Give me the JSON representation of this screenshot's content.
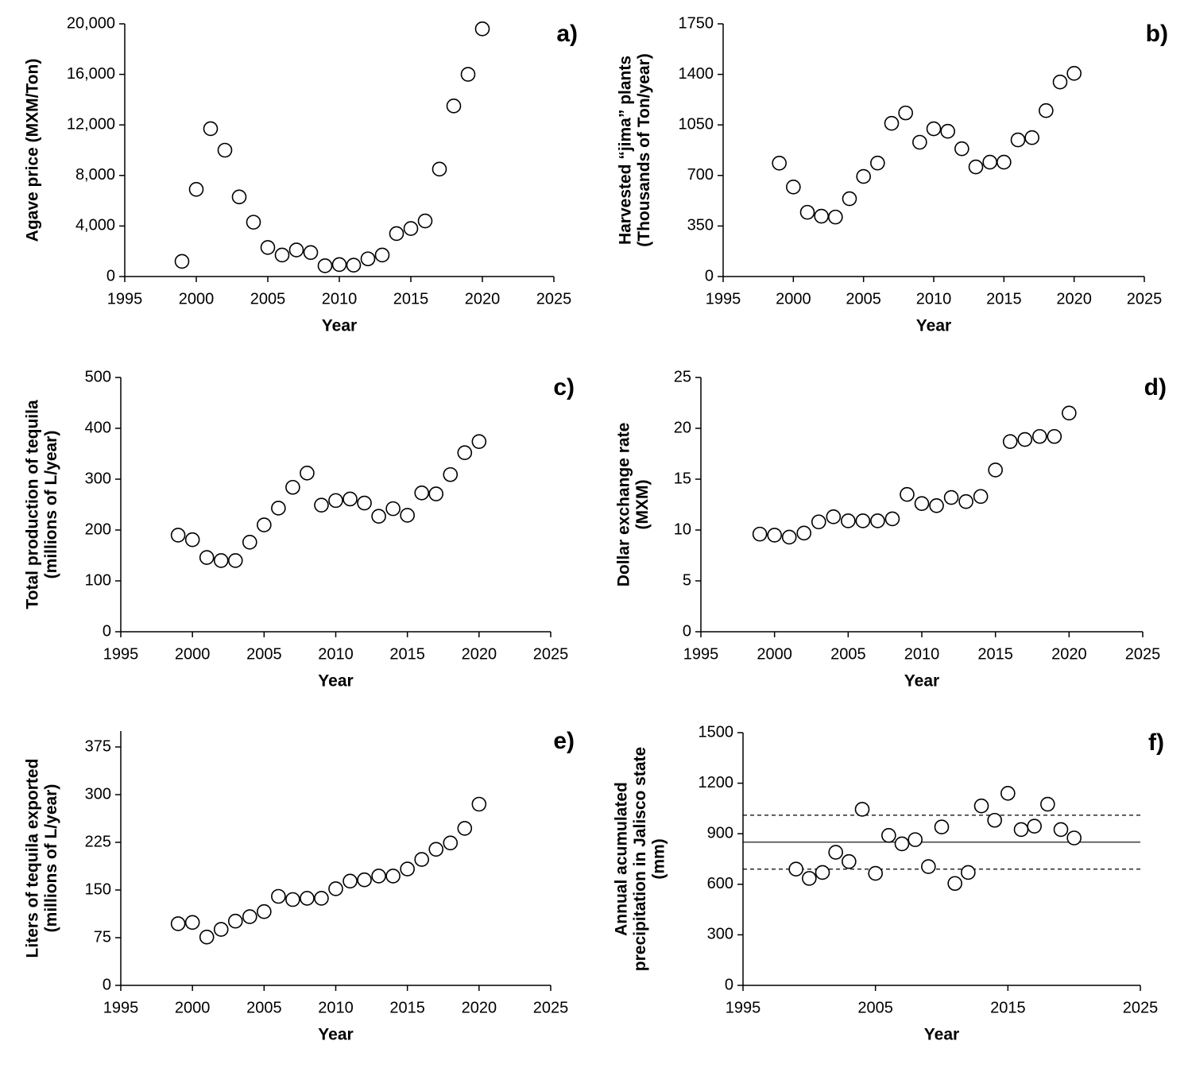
{
  "chart_data": [
    {
      "type": "scatter",
      "panel_label": "a)",
      "x_label": "Year",
      "y_label": [
        "Agave price (MXM/Ton)"
      ],
      "x": [
        1999,
        2000,
        2001,
        2002,
        2003,
        2004,
        2005,
        2006,
        2007,
        2008,
        2009,
        2010,
        2011,
        2012,
        2013,
        2014,
        2015,
        2016,
        2017,
        2018,
        2019,
        2020
      ],
      "values": [
        1200,
        6900,
        11700,
        10000,
        6300,
        4300,
        2300,
        1700,
        2100,
        1900,
        850,
        950,
        900,
        1400,
        1700,
        3400,
        3800,
        4400,
        8500,
        13500,
        16000,
        19600
      ],
      "xlim": [
        1995,
        2025
      ],
      "xticks": [
        1995,
        2000,
        2005,
        2010,
        2015,
        2020,
        2025
      ],
      "ylim": [
        0,
        20000
      ],
      "yticks": [
        0,
        {
          "value": 4000,
          "label": "4,000"
        },
        {
          "value": 8000,
          "label": "8,000"
        },
        {
          "value": 12000,
          "label": "12,000"
        },
        {
          "value": 16000,
          "label": "16,000"
        },
        {
          "value": 20000,
          "label": "20,000"
        }
      ],
      "marker_color": "#000000"
    },
    {
      "type": "scatter",
      "panel_label": "b)",
      "x_label": "Year",
      "y_label": [
        "Harvested “jima” plants",
        "(Thousands of Ton/year)"
      ],
      "x": [
        1999,
        2000,
        2001,
        2002,
        2003,
        2004,
        2005,
        2006,
        2007,
        2008,
        2009,
        2010,
        2011,
        2012,
        2013,
        2014,
        2015,
        2016,
        2017,
        2018,
        2019,
        2020
      ],
      "values": [
        785,
        620,
        445,
        418,
        412,
        539,
        693,
        786,
        1061,
        1133,
        930,
        1023,
        1006,
        885,
        759,
        792,
        792,
        946,
        962,
        1149,
        1347,
        1407
      ],
      "xlim": [
        1995,
        2025
      ],
      "xticks": [
        1995,
        2000,
        2005,
        2010,
        2015,
        2020,
        2025
      ],
      "ylim": [
        0,
        1750
      ],
      "yticks": [
        0,
        350,
        700,
        1050,
        1400,
        1750
      ],
      "marker_color": "#000000"
    },
    {
      "type": "scatter",
      "panel_label": "c)",
      "x_label": "Year",
      "y_label": [
        "Total production of tequila",
        "(millions of L/year)"
      ],
      "x": [
        1999,
        2000,
        2001,
        2002,
        2003,
        2004,
        2005,
        2006,
        2007,
        2008,
        2009,
        2010,
        2011,
        2012,
        2013,
        2014,
        2015,
        2016,
        2017,
        2018,
        2019,
        2020
      ],
      "values": [
        190,
        181,
        146,
        140,
        140,
        176,
        210,
        243,
        284,
        312,
        249,
        258,
        261,
        253,
        227,
        242,
        229,
        273,
        271,
        309,
        352,
        374
      ],
      "xlim": [
        1995,
        2025
      ],
      "xticks": [
        1995,
        2000,
        2005,
        2010,
        2015,
        2020,
        2025
      ],
      "ylim": [
        0,
        500
      ],
      "yticks": [
        0,
        100,
        200,
        300,
        400,
        500
      ],
      "marker_color": "#000000"
    },
    {
      "type": "scatter",
      "panel_label": "d)",
      "x_label": "Year",
      "y_label": [
        "Dollar exchange rate",
        "(MXM)"
      ],
      "x": [
        1999,
        2000,
        2001,
        2002,
        2003,
        2004,
        2005,
        2006,
        2007,
        2008,
        2009,
        2010,
        2011,
        2012,
        2013,
        2014,
        2015,
        2016,
        2017,
        2018,
        2019,
        2020
      ],
      "values": [
        9.6,
        9.5,
        9.3,
        9.7,
        10.8,
        11.3,
        10.9,
        10.9,
        10.9,
        11.1,
        13.5,
        12.6,
        12.4,
        13.2,
        12.8,
        13.3,
        15.9,
        18.7,
        18.9,
        19.2,
        19.2,
        21.5
      ],
      "xlim": [
        1995,
        2025
      ],
      "xticks": [
        1995,
        2000,
        2005,
        2010,
        2015,
        2020,
        2025
      ],
      "ylim": [
        0,
        25
      ],
      "yticks": [
        0,
        5,
        10,
        15,
        20,
        25
      ],
      "marker_color": "#000000"
    },
    {
      "type": "scatter",
      "panel_label": "e)",
      "x_label": "Year",
      "y_label": [
        "Liters of tequila exported",
        "(millions of L/year)"
      ],
      "x": [
        1999,
        2000,
        2001,
        2002,
        2003,
        2004,
        2005,
        2006,
        2007,
        2008,
        2009,
        2010,
        2011,
        2012,
        2013,
        2014,
        2015,
        2016,
        2017,
        2018,
        2019,
        2020
      ],
      "values": [
        97,
        99,
        76,
        88,
        101,
        108,
        116,
        140,
        135,
        137,
        137,
        152,
        164,
        166,
        172,
        172,
        183,
        198,
        214,
        224,
        247,
        285
      ],
      "xlim": [
        1995,
        2025
      ],
      "xticks": [
        1995,
        2000,
        2005,
        2010,
        2015,
        2020,
        2025
      ],
      "ylim": [
        0,
        400
      ],
      "yticks": [
        0,
        75,
        150,
        225,
        300,
        375
      ],
      "marker_color": "#000000"
    },
    {
      "type": "scatter",
      "panel_label": "f)",
      "x_label": "Year",
      "y_label": [
        "Annual acumulated",
        "precipitation in Jalisco state",
        "(mm)"
      ],
      "x": [
        1999,
        2000,
        2001,
        2002,
        2003,
        2004,
        2005,
        2006,
        2007,
        2008,
        2009,
        2010,
        2011,
        2012,
        2013,
        2014,
        2015,
        2016,
        2017,
        2018,
        2019,
        2020
      ],
      "values": [
        690,
        635,
        670,
        790,
        735,
        1045,
        665,
        890,
        840,
        865,
        705,
        940,
        605,
        670,
        1065,
        980,
        1140,
        925,
        945,
        1075,
        925,
        875
      ],
      "xlim": [
        1995,
        2025
      ],
      "xticks": [
        1995,
        2005,
        2015,
        2025
      ],
      "ylim": [
        0,
        1500
      ],
      "yticks": [
        0,
        300,
        600,
        900,
        1200,
        1500
      ],
      "reference_lines": [
        {
          "value": 850,
          "dashed": false
        },
        {
          "value": 1010,
          "dashed": true
        },
        {
          "value": 690,
          "dashed": true
        }
      ],
      "marker_color": "#000000"
    }
  ]
}
